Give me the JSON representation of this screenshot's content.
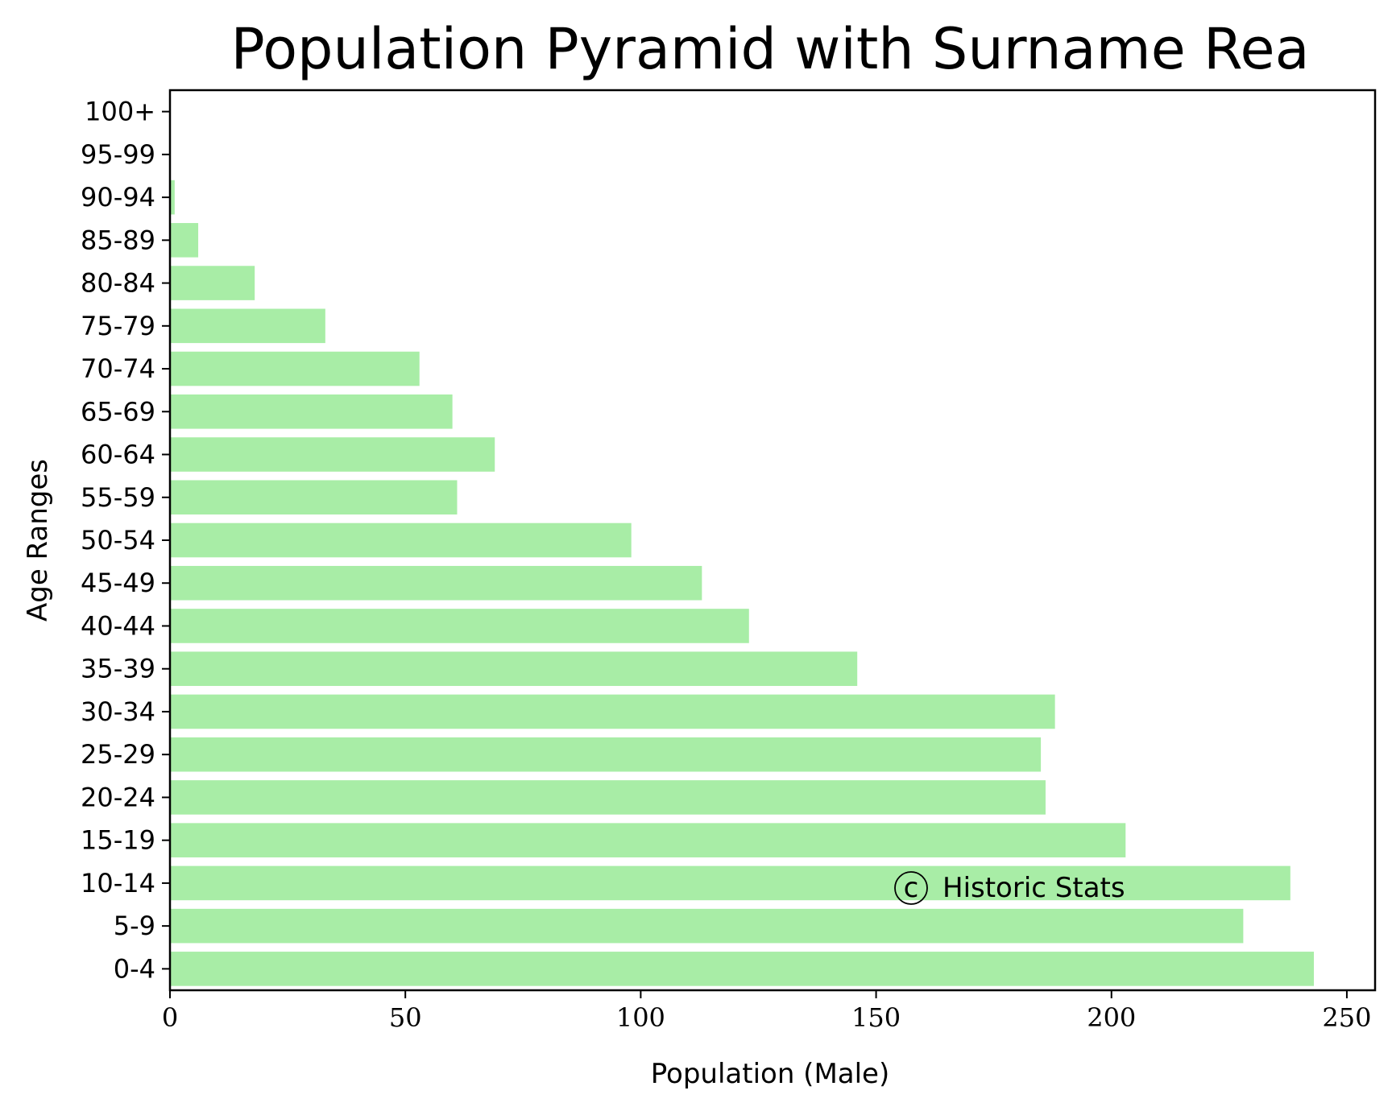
{
  "chart_data": {
    "type": "bar",
    "orientation": "horizontal",
    "title": "Population Pyramid with Surname Rea",
    "xlabel": "Population (Male)",
    "ylabel": "Age Ranges",
    "xlim": [
      0,
      256
    ],
    "xticks": [
      0,
      50,
      100,
      150,
      200,
      250
    ],
    "categories": [
      "0-4",
      "5-9",
      "10-14",
      "15-19",
      "20-24",
      "25-29",
      "30-34",
      "35-39",
      "40-44",
      "45-49",
      "50-54",
      "55-59",
      "60-64",
      "65-69",
      "70-74",
      "75-79",
      "80-84",
      "85-89",
      "90-94",
      "95-99",
      "100+"
    ],
    "series": [
      {
        "values": [
          243,
          228,
          238,
          203,
          186,
          185,
          188,
          146,
          123,
          113,
          98,
          61,
          69,
          60,
          53,
          33,
          18,
          6,
          1,
          0,
          0
        ],
        "color": "#a8eda6"
      }
    ],
    "grid": false,
    "annotation": {
      "symbol": "c",
      "text": "Historic Stats"
    }
  }
}
